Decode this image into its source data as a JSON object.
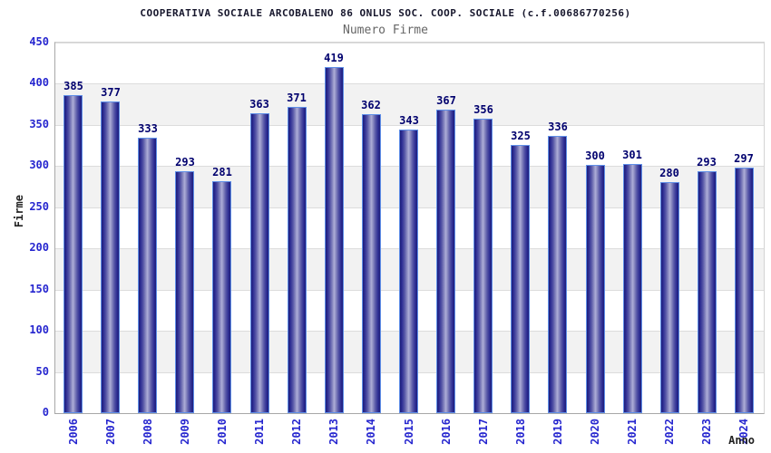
{
  "header": {
    "title": "COOPERATIVA SOCIALE ARCOBALENO 86 ONLUS SOC. COOP. SOCIALE (c.f.00686770256)",
    "subtitle": "Numero Firme"
  },
  "chart_data": {
    "type": "bar",
    "title": "COOPERATIVA SOCIALE ARCOBALENO 86 ONLUS SOC. COOP. SOCIALE (c.f.00686770256)",
    "subtitle": "Numero Firme",
    "xlabel": "Anno",
    "ylabel": "Firme",
    "categories": [
      "2006",
      "2007",
      "2008",
      "2009",
      "2010",
      "2011",
      "2012",
      "2013",
      "2014",
      "2015",
      "2016",
      "2017",
      "2018",
      "2019",
      "2020",
      "2021",
      "2022",
      "2023",
      "2024"
    ],
    "values": [
      385,
      377,
      333,
      293,
      281,
      363,
      371,
      419,
      362,
      343,
      367,
      356,
      325,
      336,
      300,
      301,
      280,
      293,
      297
    ],
    "ylim": [
      0,
      450
    ],
    "ytick_step": 50,
    "grid": true,
    "legend": "none",
    "band_ranges": [
      [
        50,
        100
      ],
      [
        150,
        200
      ],
      [
        250,
        300
      ],
      [
        350,
        400
      ]
    ],
    "colors": {
      "bar_edge_dark": "#1e1e78",
      "bar_center_light": "#aeaed8",
      "bar_border": "#5f8fe8",
      "tick_label": "#2626cf",
      "value_label": "#00006e",
      "band_fill": "#f2f2f2",
      "gridline": "#dcdcdc",
      "title_text": "#16162c",
      "subtitle_text": "#666666",
      "axis_title_text": "#222222"
    }
  }
}
